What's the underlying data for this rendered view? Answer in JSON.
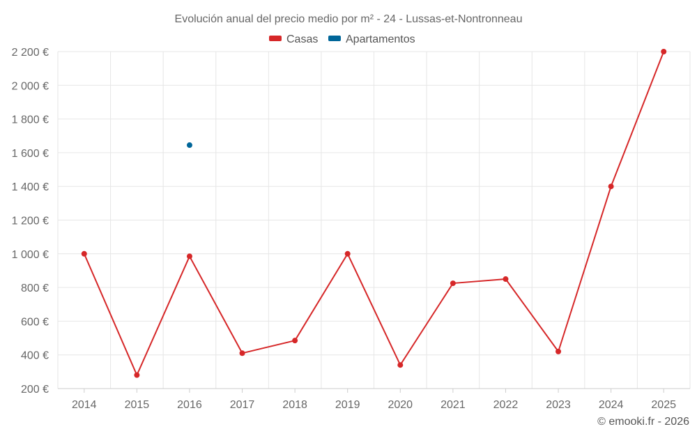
{
  "chart_data": {
    "type": "line",
    "title": "Evolución anual del precio medio por m² - 24 - Lussas-et-Nontronneau",
    "xlabel": "",
    "ylabel": "",
    "categories": [
      "2014",
      "2015",
      "2016",
      "2017",
      "2018",
      "2019",
      "2020",
      "2021",
      "2022",
      "2023",
      "2024",
      "2025"
    ],
    "ylim": [
      200,
      2200
    ],
    "yticks": [
      200,
      400,
      600,
      800,
      1000,
      1200,
      1400,
      1600,
      1800,
      2000,
      2200
    ],
    "ytick_labels": [
      "200 €",
      "400 €",
      "600 €",
      "800 €",
      "1 000 €",
      "1 200 €",
      "1 400 €",
      "1 600 €",
      "1 800 €",
      "2 000 €",
      "2 200 €"
    ],
    "grid": true,
    "legend_position": "top-center",
    "series": [
      {
        "name": "Casas",
        "color": "#d62728",
        "values": [
          1000,
          280,
          985,
          410,
          485,
          1000,
          340,
          825,
          850,
          420,
          1400,
          2200
        ]
      },
      {
        "name": "Apartamentos",
        "color": "#006699",
        "values": [
          null,
          null,
          1645,
          null,
          null,
          null,
          null,
          null,
          null,
          null,
          null,
          null
        ]
      }
    ]
  },
  "credit": "© emooki.fr - 2026"
}
